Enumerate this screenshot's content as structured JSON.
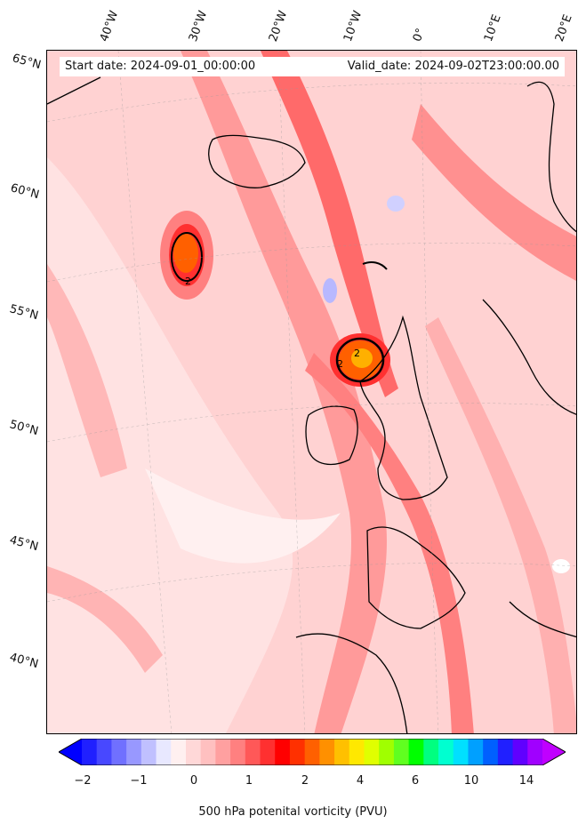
{
  "header": {
    "start_date": "Start date: 2024-09-01_00:00:00",
    "valid_date": "Valid_date: 2024-09-02T23:00:00.00"
  },
  "map": {
    "lon_ticks": [
      "40°W",
      "30°W",
      "20°W",
      "10°W",
      "0°",
      "10°E",
      "20°E"
    ],
    "lat_ticks": [
      "65°N",
      "60°N",
      "55°N",
      "50°N",
      "45°N",
      "40°N"
    ],
    "contour_labels": [
      "2",
      "2",
      "2"
    ],
    "background_color": "#ffd0d0",
    "contour_color": "#000000"
  },
  "colorbar": {
    "label": "500 hPa potenital vorticity (PVU)",
    "tick_labels": [
      "−2",
      "−1",
      "0",
      "1",
      "2",
      "4",
      "6",
      "10",
      "14"
    ],
    "colors": [
      "#0000ff",
      "#2020ff",
      "#4848ff",
      "#7070ff",
      "#9898ff",
      "#c0c0ff",
      "#e8e8ff",
      "#fff0f0",
      "#ffd8d8",
      "#ffc0c0",
      "#ffa0a0",
      "#ff8080",
      "#ff5858",
      "#ff3030",
      "#ff0000",
      "#ff3000",
      "#ff6000",
      "#ff9000",
      "#ffc000",
      "#ffe800",
      "#e0ff00",
      "#a0ff00",
      "#60ff20",
      "#00ff00",
      "#00ff80",
      "#00ffd0",
      "#00e0ff",
      "#00a0ff",
      "#0060ff",
      "#2020ff",
      "#6000ff",
      "#a000ff",
      "#c000ff"
    ]
  }
}
